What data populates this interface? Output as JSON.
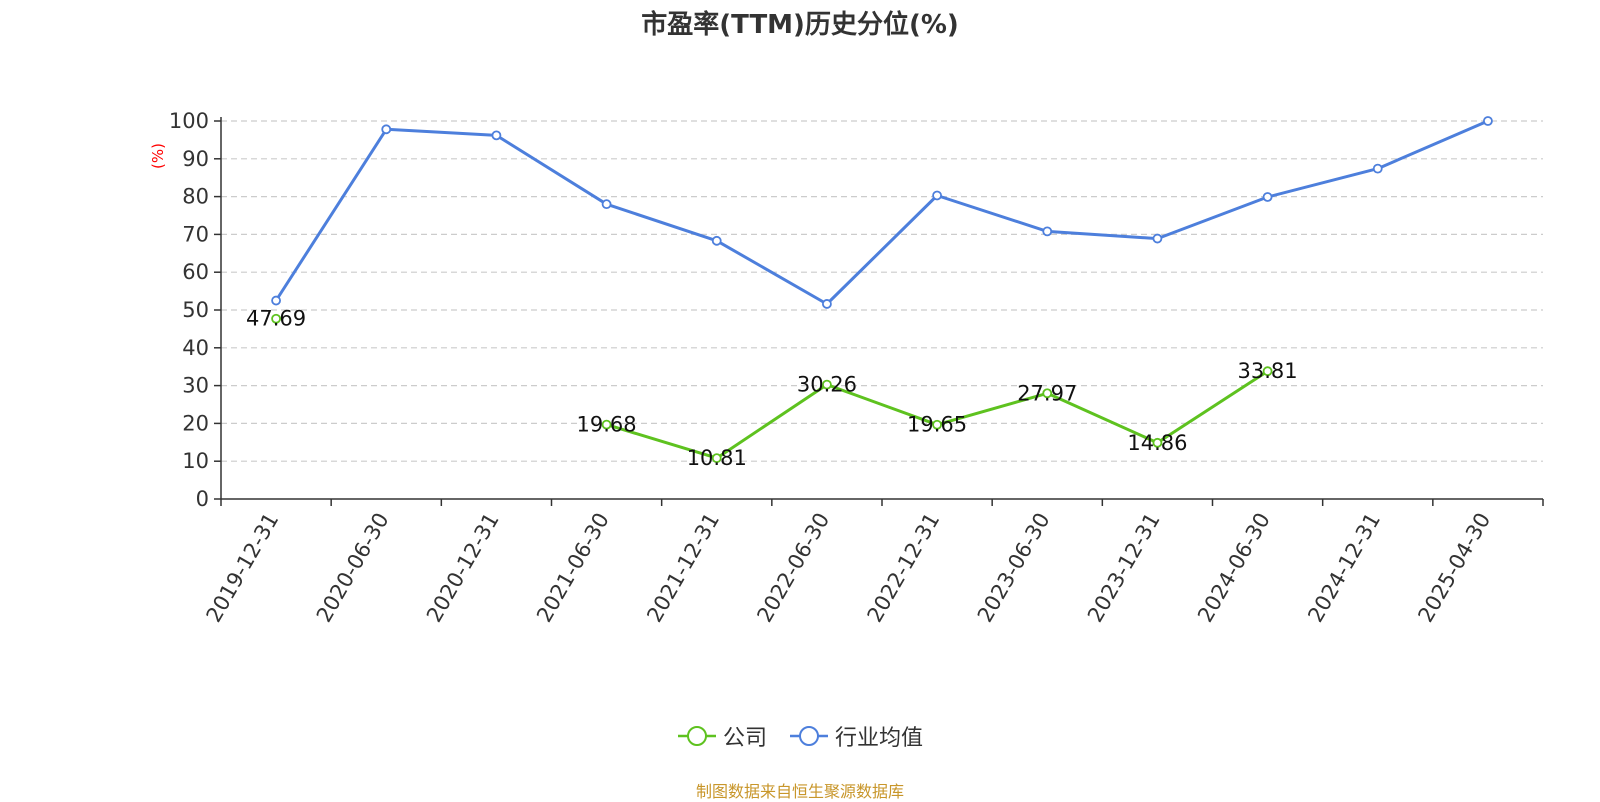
{
  "chart_data": {
    "type": "line",
    "title": "市盈率(TTM)历史分位(%)",
    "ylabel": "(%)",
    "xlabel": "",
    "ylim": [
      0,
      100
    ],
    "yticks": [
      0,
      10,
      20,
      30,
      40,
      50,
      60,
      70,
      80,
      90,
      100
    ],
    "categories": [
      "2019-12-31",
      "2020-06-30",
      "2020-12-31",
      "2021-06-30",
      "2021-12-31",
      "2022-06-30",
      "2022-12-31",
      "2023-06-30",
      "2023-12-31",
      "2024-06-30",
      "2024-12-31",
      "2025-04-30"
    ],
    "grid": true,
    "legend_position": "bottom",
    "series": [
      {
        "name": "公司",
        "color": "#5ec21f",
        "values": [
          47.69,
          null,
          null,
          19.68,
          10.81,
          30.26,
          19.65,
          27.97,
          14.86,
          33.81,
          null,
          null
        ],
        "show_labels": true
      },
      {
        "name": "行业均值",
        "color": "#4d7fdc",
        "values": [
          52.5,
          97.8,
          96.2,
          78,
          68.3,
          51.6,
          80.3,
          70.8,
          68.9,
          79.9,
          87.4,
          100
        ],
        "show_labels": false
      }
    ],
    "source_note": "制图数据来自恒生聚源数据库",
    "source_note_color": "#c8962a",
    "ylabel_color": "#ff0000"
  }
}
